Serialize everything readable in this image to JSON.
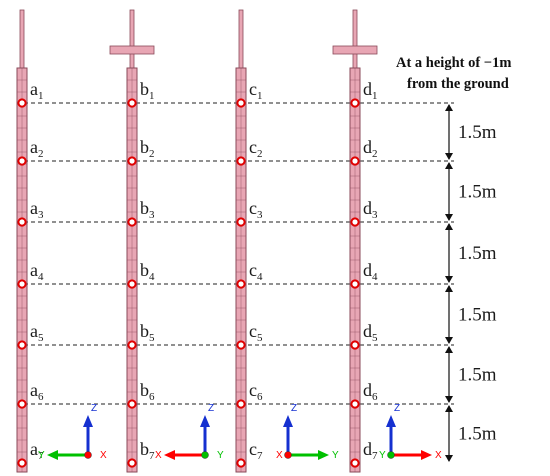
{
  "header": {
    "line1": "At a height of −1m",
    "line2": "from the ground"
  },
  "piles": [
    {
      "letter": "a",
      "has_cross": false,
      "points": [
        "a1",
        "a2",
        "a3",
        "a4",
        "a5",
        "a6",
        "a7"
      ]
    },
    {
      "letter": "b",
      "has_cross": true,
      "points": [
        "b1",
        "b2",
        "b3",
        "b4",
        "b5",
        "b6",
        "b7"
      ]
    },
    {
      "letter": "c",
      "has_cross": false,
      "points": [
        "c1",
        "c2",
        "c3",
        "c4",
        "c5",
        "c6",
        "c7"
      ]
    },
    {
      "letter": "d",
      "has_cross": true,
      "points": [
        "d1",
        "d2",
        "d3",
        "d4",
        "d5",
        "d6",
        "d7"
      ]
    }
  ],
  "spacing_labels": [
    "1.5m",
    "1.5m",
    "1.5m",
    "1.5m",
    "1.5m",
    "1.5m"
  ],
  "axis_triads": [
    {
      "vertical": "Z",
      "horizontal": "Y",
      "horizontal_color": "#00c000",
      "direction": "left",
      "depth": "X",
      "depth_color": "#ff0000"
    },
    {
      "vertical": "Z",
      "horizontal": "X",
      "horizontal_color": "#ff0000",
      "direction": "left",
      "depth": "Y",
      "depth_color": "#00c000"
    },
    {
      "vertical": "Z",
      "horizontal": "Y",
      "horizontal_color": "#00c000",
      "direction": "right",
      "depth": "X",
      "depth_color": "#ff0000"
    },
    {
      "vertical": "Z",
      "horizontal": "X",
      "horizontal_color": "#ff0000",
      "direction": "right",
      "depth": "Y",
      "depth_color": "#00c000"
    }
  ],
  "colors": {
    "pile_fill": "#e8a6b4",
    "pile_stroke": "#8a4a5a",
    "marker": "#e00000",
    "dashed_line": "#222222",
    "z_axis": "#1530d0",
    "y_axis": "#00c000",
    "x_axis": "#ff0000"
  }
}
